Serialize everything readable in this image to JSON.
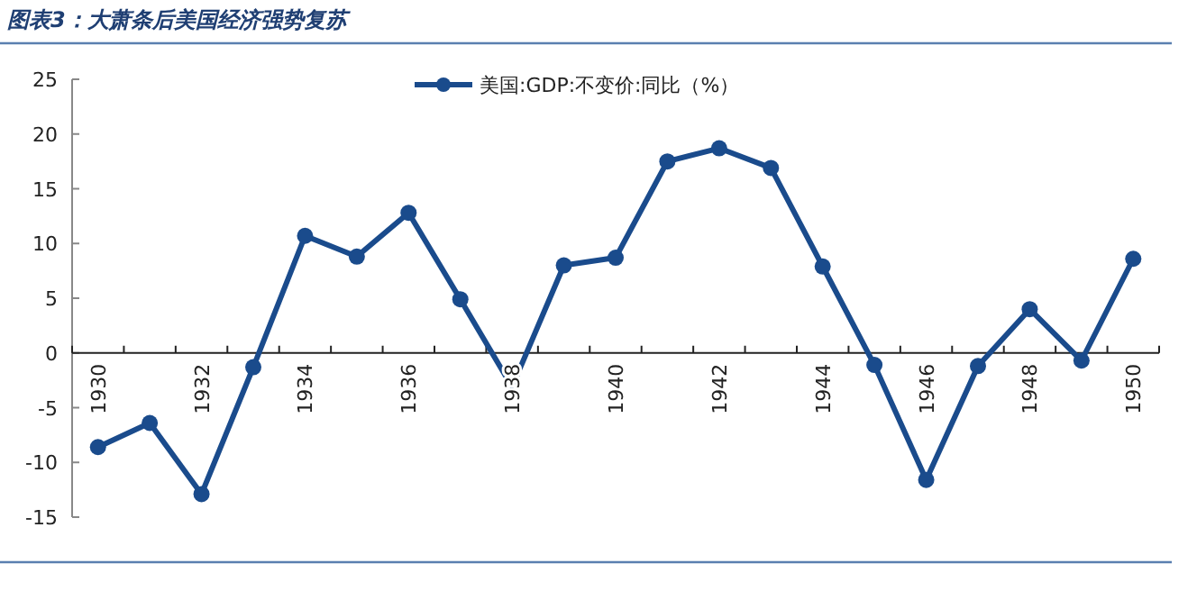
{
  "chart_data": {
    "type": "line",
    "title": "图表3：大萧条后美国经济强势复苏",
    "categories": [
      "1930",
      null,
      "1932",
      null,
      "1934",
      null,
      "1936",
      null,
      "1938",
      null,
      "1940",
      null,
      "1942",
      null,
      "1944",
      null,
      "1946",
      null,
      "1948",
      null,
      "1950"
    ],
    "series": [
      {
        "name": "美国:GDP:不变价:同比（%）",
        "color": "#1a4b8c",
        "values": [
          -8.6,
          -6.4,
          -12.9,
          -1.3,
          10.7,
          8.8,
          12.8,
          4.9,
          -3.1,
          8.0,
          8.7,
          17.5,
          18.7,
          16.9,
          7.9,
          -1.1,
          -11.6,
          -1.2,
          4.0,
          -0.7,
          8.6
        ]
      }
    ],
    "ylim": [
      -15,
      25
    ],
    "yticks": [
      -15,
      -10,
      -5,
      0,
      5,
      10,
      15,
      20,
      25
    ],
    "legend": "top",
    "marker": "circle",
    "line_style": "solid"
  }
}
